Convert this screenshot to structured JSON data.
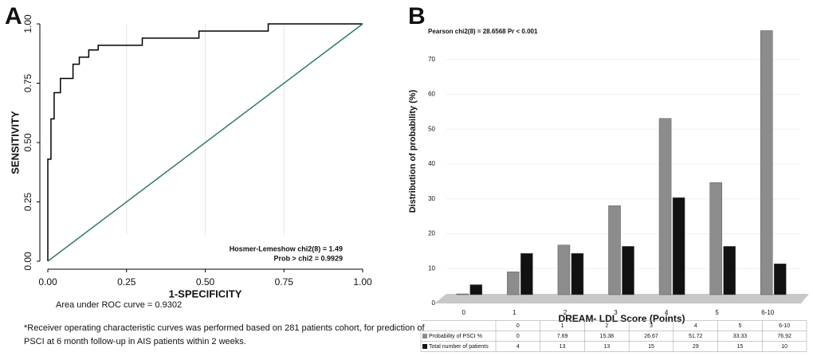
{
  "chart_data": [
    {
      "type": "line",
      "panel": "A",
      "xlabel": "1-SPECIFICITY",
      "ylabel": "SENSITIVITY",
      "annotations": [
        "Hosmer-Lemeshow chi2(8) = 1.49",
        "Prob > chi2 =  0.9929"
      ],
      "auc_text": "Area under ROC curve = 0.9302",
      "footnote": [
        "*Receiver operating characteristic curves was performed based on 281 patients cohort, for prediction of",
        "PSCI at 6 month follow-up in AIS patients within 2 weeks."
      ],
      "xlim": [
        0,
        1
      ],
      "ylim": [
        0,
        1
      ],
      "xticks": [
        {
          "value": 0,
          "label": "0.00"
        },
        {
          "value": 0.25,
          "label": "0.25"
        },
        {
          "value": 0.5,
          "label": "0.50"
        },
        {
          "value": 0.75,
          "label": "0.75"
        },
        {
          "value": 1,
          "label": "1.00"
        }
      ],
      "yticks": [
        {
          "value": 0,
          "label": "0.00"
        },
        {
          "value": 0.25,
          "label": "0.25"
        },
        {
          "value": 0.5,
          "label": "0.50"
        },
        {
          "value": 0.75,
          "label": "0.75"
        },
        {
          "value": 1,
          "label": "1.00"
        }
      ],
      "grid": true,
      "series": [
        {
          "color": "#000000",
          "x": [
            0,
            0,
            0.01,
            0.01,
            0.02,
            0.02,
            0.04,
            0.04,
            0.08,
            0.08,
            0.1,
            0.1,
            0.13,
            0.13,
            0.16,
            0.16,
            0.3,
            0.3,
            0.48,
            0.48,
            0.7,
            0.7,
            1
          ],
          "values": [
            0,
            0.43,
            0.43,
            0.6,
            0.6,
            0.71,
            0.71,
            0.77,
            0.77,
            0.83,
            0.83,
            0.86,
            0.86,
            0.89,
            0.89,
            0.91,
            0.91,
            0.94,
            0.94,
            0.97,
            0.97,
            1,
            1
          ]
        },
        {
          "color": "#2e7d5b",
          "x": [
            0,
            1
          ],
          "values": [
            0,
            1
          ]
        }
      ]
    },
    {
      "type": "bar",
      "panel": "B",
      "title": "Pearson chi2(8) = 28.6568   Pr < 0.001",
      "xlabel": "DREAM- LDL Score (Points)",
      "ylabel": "Distribution  of probability (%)",
      "categories": [
        "0",
        "1",
        "2",
        "3",
        "4",
        "5",
        "6-10"
      ],
      "ylim": [
        0,
        80
      ],
      "yticks": [
        0,
        10,
        20,
        30,
        40,
        50,
        60,
        70
      ],
      "series": [
        {
          "name": "Probability of PSCI %",
          "color": "#8c8c8c",
          "values": [
            0,
            7.69,
            15.38,
            26.67,
            51.72,
            33.33,
            76.92
          ]
        },
        {
          "name": "Total number of patients",
          "color": "#111111",
          "values": [
            4,
            13,
            13,
            15,
            29,
            15,
            10
          ]
        }
      ]
    }
  ]
}
